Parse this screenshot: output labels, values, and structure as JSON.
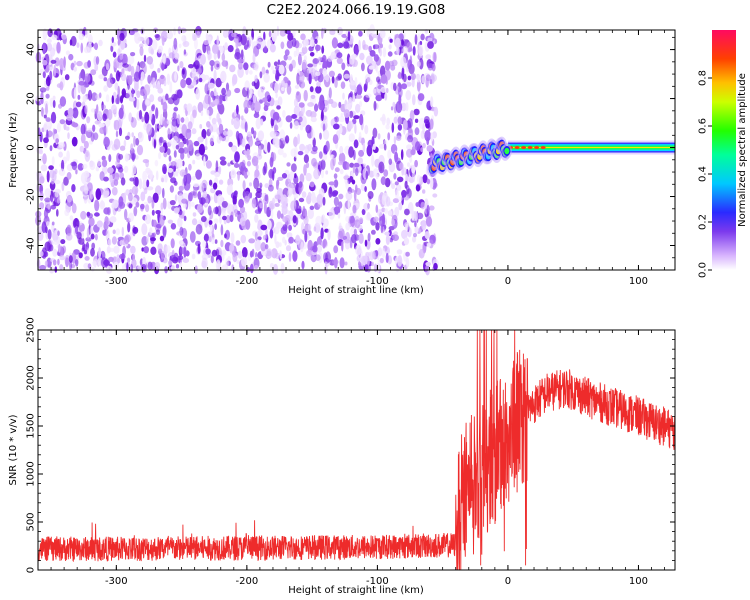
{
  "title": "C2E2.2024.066.19.19.G08",
  "colors": {
    "snr_line": "#ee2b2b",
    "axis": "#000000"
  },
  "chart_data": [
    {
      "type": "heatmap",
      "xlabel": "Height of straight line (km)",
      "ylabel": "Frequency (Hz)",
      "xlim": [
        -360,
        128
      ],
      "ylim": [
        -50,
        48
      ],
      "xticks": [
        "-300",
        "-200",
        "-100",
        "0",
        "100"
      ],
      "xtick_values": [
        -300,
        -200,
        -100,
        0,
        100
      ],
      "yticks": [
        "-40",
        "-20",
        "0",
        "20",
        "40"
      ],
      "ytick_values": [
        -40,
        -20,
        0,
        20,
        40
      ],
      "noise_region_km": [
        -360,
        -55
      ],
      "signal_start_km": -58,
      "colorbar": {
        "label": "Normalized spectral amplitude",
        "range": [
          0.0,
          1.0
        ],
        "ticks": [
          "0.0",
          "0.2",
          "0.4",
          "0.6",
          "0.8"
        ],
        "tick_values": [
          0.0,
          0.2,
          0.4,
          0.6,
          0.8
        ]
      }
    },
    {
      "type": "line",
      "xlabel": "Height of straight line (km)",
      "ylabel": "SNR (10 * v/v)",
      "xlim": [
        -360,
        128
      ],
      "ylim": [
        0,
        2500
      ],
      "xticks": [
        "-300",
        "-200",
        "-100",
        "0",
        "100"
      ],
      "xtick_values": [
        -300,
        -200,
        -100,
        0,
        100
      ],
      "yticks": [
        "0",
        "500",
        "1000",
        "1500",
        "2000",
        "2500"
      ],
      "ytick_values": [
        0,
        500,
        1000,
        1500,
        2000,
        2500
      ],
      "series": [
        {
          "name": "SNR",
          "envelope_x": [
            -360,
            -300,
            -200,
            -100,
            -40,
            -35,
            -25,
            -15,
            -5,
            10,
            30,
            45,
            60,
            80,
            100,
            128
          ],
          "envelope_y": [
            220,
            220,
            230,
            240,
            260,
            800,
            1000,
            1150,
            1300,
            1600,
            1850,
            1900,
            1800,
            1700,
            1600,
            1450
          ]
        }
      ]
    }
  ]
}
